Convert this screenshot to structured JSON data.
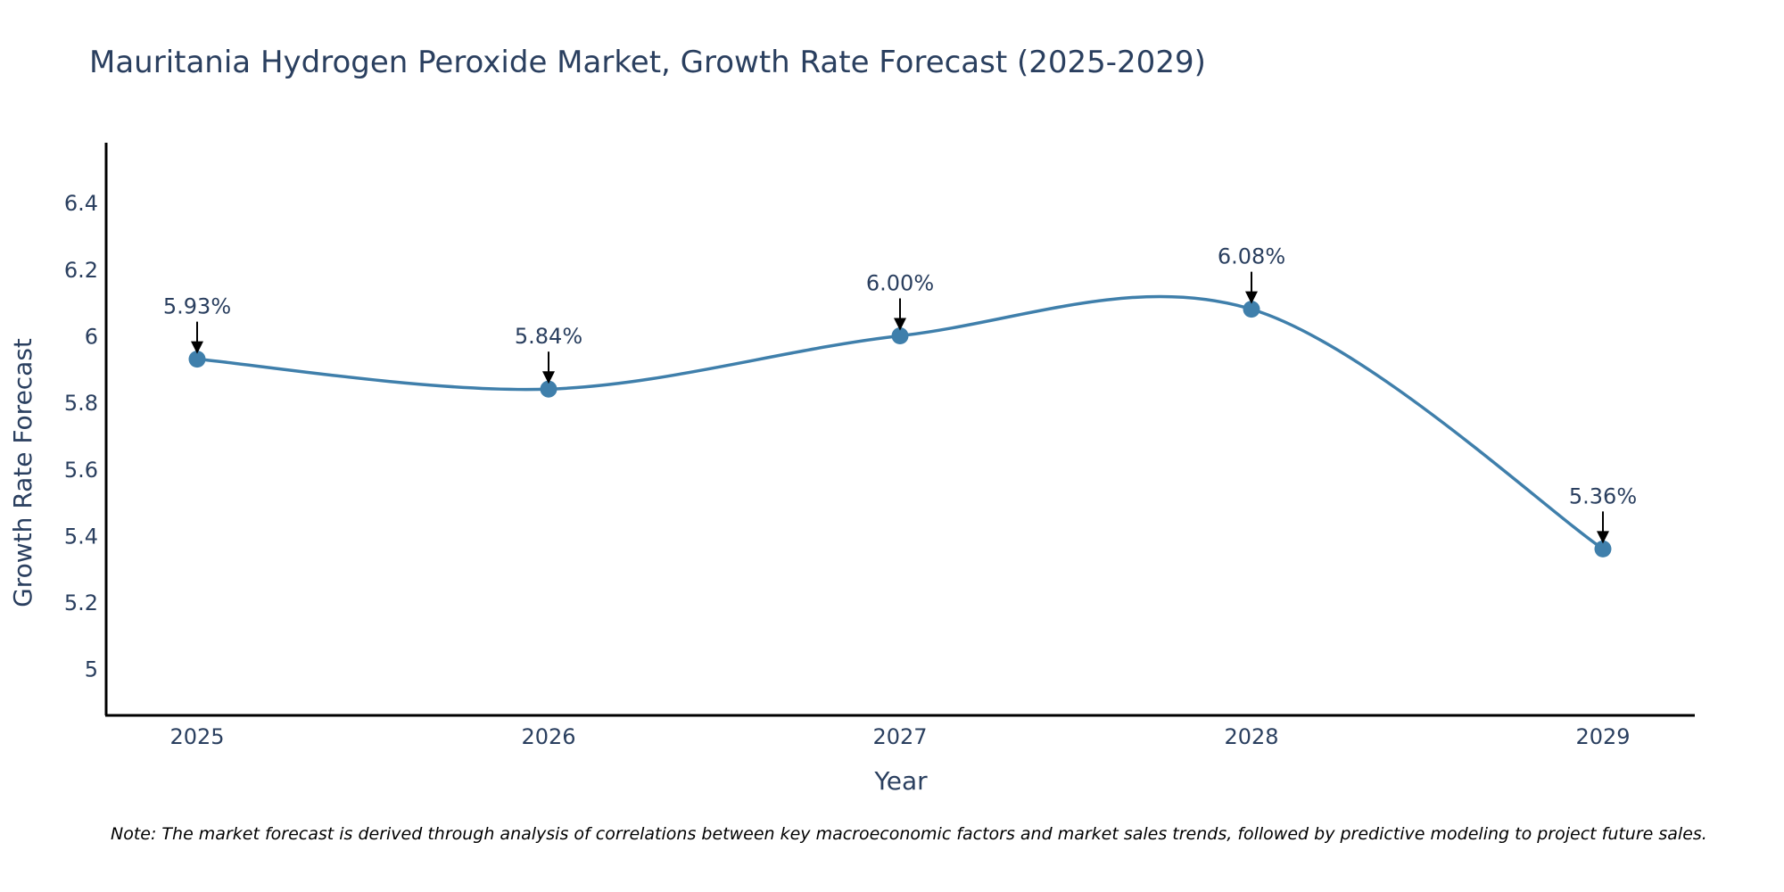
{
  "chart_data": {
    "type": "line",
    "title": "Mauritania Hydrogen Peroxide Market, Growth Rate Forecast (2025-2029)",
    "xlabel": "Year",
    "ylabel": "Growth Rate Forecast",
    "categories": [
      "2025",
      "2026",
      "2027",
      "2028",
      "2029"
    ],
    "values": [
      5.93,
      5.84,
      6.0,
      6.08,
      5.36
    ],
    "data_labels": [
      "5.93%",
      "5.84%",
      "6.00%",
      "6.08%",
      "5.36%"
    ],
    "ylim": [
      4.86,
      6.58
    ],
    "yticks": [
      5,
      5.2,
      5.4,
      5.6,
      5.8,
      6,
      6.2,
      6.4
    ],
    "ytick_labels": [
      "5",
      "5.2",
      "5.4",
      "5.6",
      "5.8",
      "6",
      "6.2",
      "6.4"
    ],
    "grid": false,
    "line_color": "#3f7fab",
    "marker_color": "#3f7fab",
    "annotation_color": "#000000",
    "note": "Note: The market forecast is derived through analysis of correlations between key macroeconomic factors and market sales trends, followed by predictive modeling to project future sales."
  }
}
